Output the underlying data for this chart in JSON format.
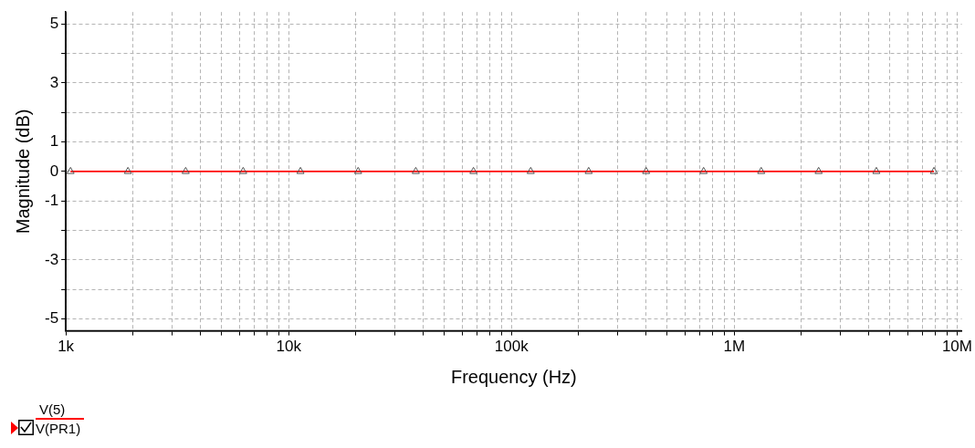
{
  "chart_data": {
    "type": "line",
    "xlabel": "Frequency (Hz)",
    "ylabel": "Magnitude (dB)",
    "annotations": [
      "V(PR1)"
    ],
    "log": "x",
    "grid": true,
    "marker": "triangle",
    "line_style": "solid",
    "legend": "bottom left",
    "xlim": [
      1000,
      10500000
    ],
    "xticks": [
      {
        "value": 1000,
        "label": "1k"
      },
      {
        "value": 2000,
        "label": null
      },
      {
        "value": 3000,
        "label": null
      },
      {
        "value": 4000,
        "label": null
      },
      {
        "value": 5000,
        "label": null
      },
      {
        "value": 6000,
        "label": null
      },
      {
        "value": 7000,
        "label": null
      },
      {
        "value": 8000,
        "label": null
      },
      {
        "value": 9000,
        "label": null
      },
      {
        "value": 10000,
        "label": "10k"
      },
      {
        "value": 20000,
        "label": null
      },
      {
        "value": 30000,
        "label": null
      },
      {
        "value": 40000,
        "label": null
      },
      {
        "value": 50000,
        "label": null
      },
      {
        "value": 60000,
        "label": null
      },
      {
        "value": 70000,
        "label": null
      },
      {
        "value": 80000,
        "label": null
      },
      {
        "value": 90000,
        "label": null
      },
      {
        "value": 100000,
        "label": "100k"
      },
      {
        "value": 200000,
        "label": null
      },
      {
        "value": 300000,
        "label": null
      },
      {
        "value": 400000,
        "label": null
      },
      {
        "value": 500000,
        "label": null
      },
      {
        "value": 600000,
        "label": null
      },
      {
        "value": 700000,
        "label": null
      },
      {
        "value": 800000,
        "label": null
      },
      {
        "value": 900000,
        "label": null
      },
      {
        "value": 1000000,
        "label": "1M"
      },
      {
        "value": 2000000,
        "label": null
      },
      {
        "value": 3000000,
        "label": null
      },
      {
        "value": 4000000,
        "label": null
      },
      {
        "value": 5000000,
        "label": null
      },
      {
        "value": 6000000,
        "label": null
      },
      {
        "value": 7000000,
        "label": null
      },
      {
        "value": 8000000,
        "label": null
      },
      {
        "value": 9000000,
        "label": null
      },
      {
        "value": 10000000,
        "label": "10M"
      }
    ],
    "ylim": [
      -5.4,
      5.4
    ],
    "yticks": [
      -5,
      {
        "value": -4,
        "label": null
      },
      -3,
      {
        "value": -2,
        "label": null
      },
      -1,
      0,
      1,
      {
        "value": 2,
        "label": null
      },
      3,
      {
        "value": 4,
        "label": null
      },
      5
    ],
    "x": [
      1050,
      1900,
      3450,
      6250,
      11300,
      20500,
      37200,
      67500,
      122000,
      222000,
      402000,
      728000,
      1320000,
      2390000,
      4340000,
      7870000
    ],
    "series": [
      {
        "name": "V(5)",
        "color": "#ff0000",
        "values": [
          0,
          0,
          0,
          0,
          0,
          0,
          0,
          0,
          0,
          0,
          0,
          0,
          0,
          0,
          0,
          0
        ]
      }
    ]
  }
}
